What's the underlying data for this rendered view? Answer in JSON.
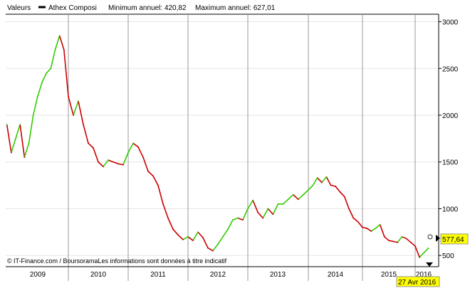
{
  "legend": {
    "series_label": "Valeurs",
    "instrument": "Athex Composi",
    "min_text": "Minimum annuel: 420,82",
    "max_text": "Maximum annuel: 627,01"
  },
  "footer": {
    "copyright_symbol": "©",
    "text": "IT-Finance.com / BoursoramaLes informations sont données à titre indicatif"
  },
  "last_value_label": "577,64",
  "date_badge": "27 Avr 2016",
  "colors": {
    "up": "#33cc00",
    "down": "#cc0000",
    "grid_vertical": "#999999",
    "grid_horizontal": "#e5e5e5",
    "badge_bg": "#ffff00"
  },
  "chart_data": {
    "type": "line",
    "title": "",
    "series": [
      {
        "name": "Athex Composi"
      }
    ],
    "x": [
      "2008-11",
      "2008-12",
      "2009-01",
      "2009-02",
      "2009-03",
      "2009-04",
      "2009-05",
      "2009-06",
      "2009-07",
      "2009-08",
      "2009-09",
      "2009-10",
      "2009-11",
      "2009-12",
      "2010-01",
      "2010-02",
      "2010-03",
      "2010-04",
      "2010-05",
      "2010-06",
      "2010-07",
      "2010-08",
      "2010-09",
      "2010-10",
      "2010-11",
      "2010-12",
      "2011-01",
      "2011-02",
      "2011-03",
      "2011-04",
      "2011-05",
      "2011-06",
      "2011-07",
      "2011-08",
      "2011-09",
      "2011-10",
      "2011-11",
      "2011-12",
      "2012-01",
      "2012-02",
      "2012-03",
      "2012-04",
      "2012-05",
      "2012-06",
      "2012-07",
      "2012-08",
      "2012-09",
      "2012-10",
      "2012-11",
      "2012-12",
      "2013-01",
      "2013-02",
      "2013-03",
      "2013-04",
      "2013-05",
      "2013-06",
      "2013-07",
      "2013-08",
      "2013-09",
      "2013-10",
      "2013-11",
      "2013-12",
      "2014-01",
      "2014-02",
      "2014-03",
      "2014-04",
      "2014-05",
      "2014-06",
      "2014-07",
      "2014-08",
      "2014-09",
      "2014-10",
      "2014-11",
      "2014-12",
      "2015-01",
      "2015-02",
      "2015-03",
      "2015-04",
      "2015-05",
      "2015-06",
      "2015-07",
      "2015-08",
      "2015-09",
      "2015-10",
      "2015-11",
      "2015-12",
      "2016-01",
      "2016-02",
      "2016-03",
      "2016-04"
    ],
    "values": [
      1900,
      1600,
      1750,
      1900,
      1550,
      1700,
      2000,
      2200,
      2350,
      2450,
      2500,
      2700,
      2850,
      2700,
      2200,
      2000,
      2150,
      1900,
      1700,
      1650,
      1500,
      1450,
      1520,
      1500,
      1480,
      1470,
      1600,
      1700,
      1660,
      1550,
      1400,
      1350,
      1250,
      1050,
      900,
      780,
      720,
      670,
      700,
      660,
      750,
      690,
      580,
      550,
      620,
      700,
      780,
      880,
      900,
      880,
      1000,
      1090,
      960,
      900,
      1000,
      940,
      1050,
      1050,
      1100,
      1150,
      1100,
      1150,
      1200,
      1250,
      1330,
      1280,
      1340,
      1250,
      1240,
      1180,
      1130,
      1000,
      900,
      860,
      800,
      790,
      760,
      790,
      830,
      700,
      660,
      650,
      640,
      700,
      680,
      640,
      600,
      480,
      530,
      577.64
    ],
    "x_tick_labels": [
      "2009",
      "2010",
      "2011",
      "2012",
      "2013",
      "2014",
      "2015",
      "2016"
    ],
    "y_ticks": [
      500,
      1000,
      1500,
      2000,
      2500,
      3000
    ],
    "y_tick_labels": [
      "500",
      "1000",
      "1500",
      "2000",
      "2500",
      "3000"
    ],
    "ylim": [
      380,
      3080
    ],
    "y_axis_side": "right",
    "grid": true,
    "legend_position": "top-left"
  }
}
